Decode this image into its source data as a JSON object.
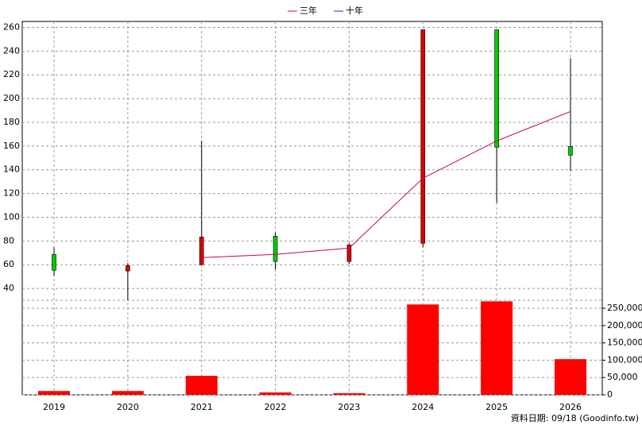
{
  "chart_data": {
    "type": "candlestick",
    "categories": [
      "2019",
      "2020",
      "2021",
      "2022",
      "2023",
      "2024",
      "2025",
      "2026"
    ],
    "open": [
      55.3,
      59.3,
      83.4,
      62.7,
      76.7,
      258,
      159,
      152.3
    ],
    "high": [
      74.7,
      61.3,
      164.3,
      87.4,
      78,
      258,
      258,
      234
    ],
    "low": [
      50.6,
      30,
      60,
      56,
      60.7,
      74.7,
      112.2,
      139
    ],
    "close": [
      68.7,
      54.7,
      60,
      84,
      62.7,
      78,
      258,
      159.7
    ],
    "up_color": "#00cc00",
    "down_color": "#dd0000",
    "series": [
      {
        "name": "三年",
        "color": "#cc0066",
        "values": [
          null,
          null,
          66,
          68.7,
          74,
          132.9,
          164.3,
          189.1
        ]
      },
      {
        "name": "十年",
        "color": "#6600cc",
        "values": [
          null,
          null,
          null,
          null,
          null,
          null,
          null,
          null
        ]
      }
    ],
    "volume": {
      "color": "#ff0000",
      "values": [
        11000,
        11000,
        55000,
        7000,
        4500,
        261000,
        270000,
        103000
      ]
    },
    "ylim": [
      30,
      265
    ],
    "yticks": [
      40,
      60,
      80,
      100,
      120,
      140,
      160,
      180,
      200,
      220,
      240,
      260
    ],
    "y2lim": [
      0,
      273000
    ],
    "y2ticks": [
      0,
      {
        "value": 50000,
        "label": "50,000"
      },
      {
        "value": 100000,
        "label": "100,000"
      },
      {
        "value": 150000,
        "label": "150,000"
      },
      {
        "value": 200000,
        "label": "200,000"
      },
      {
        "value": 250000,
        "label": "250,000"
      }
    ],
    "grid": true,
    "source": "資料日期: 09/18 (Goodinfo.tw)"
  }
}
